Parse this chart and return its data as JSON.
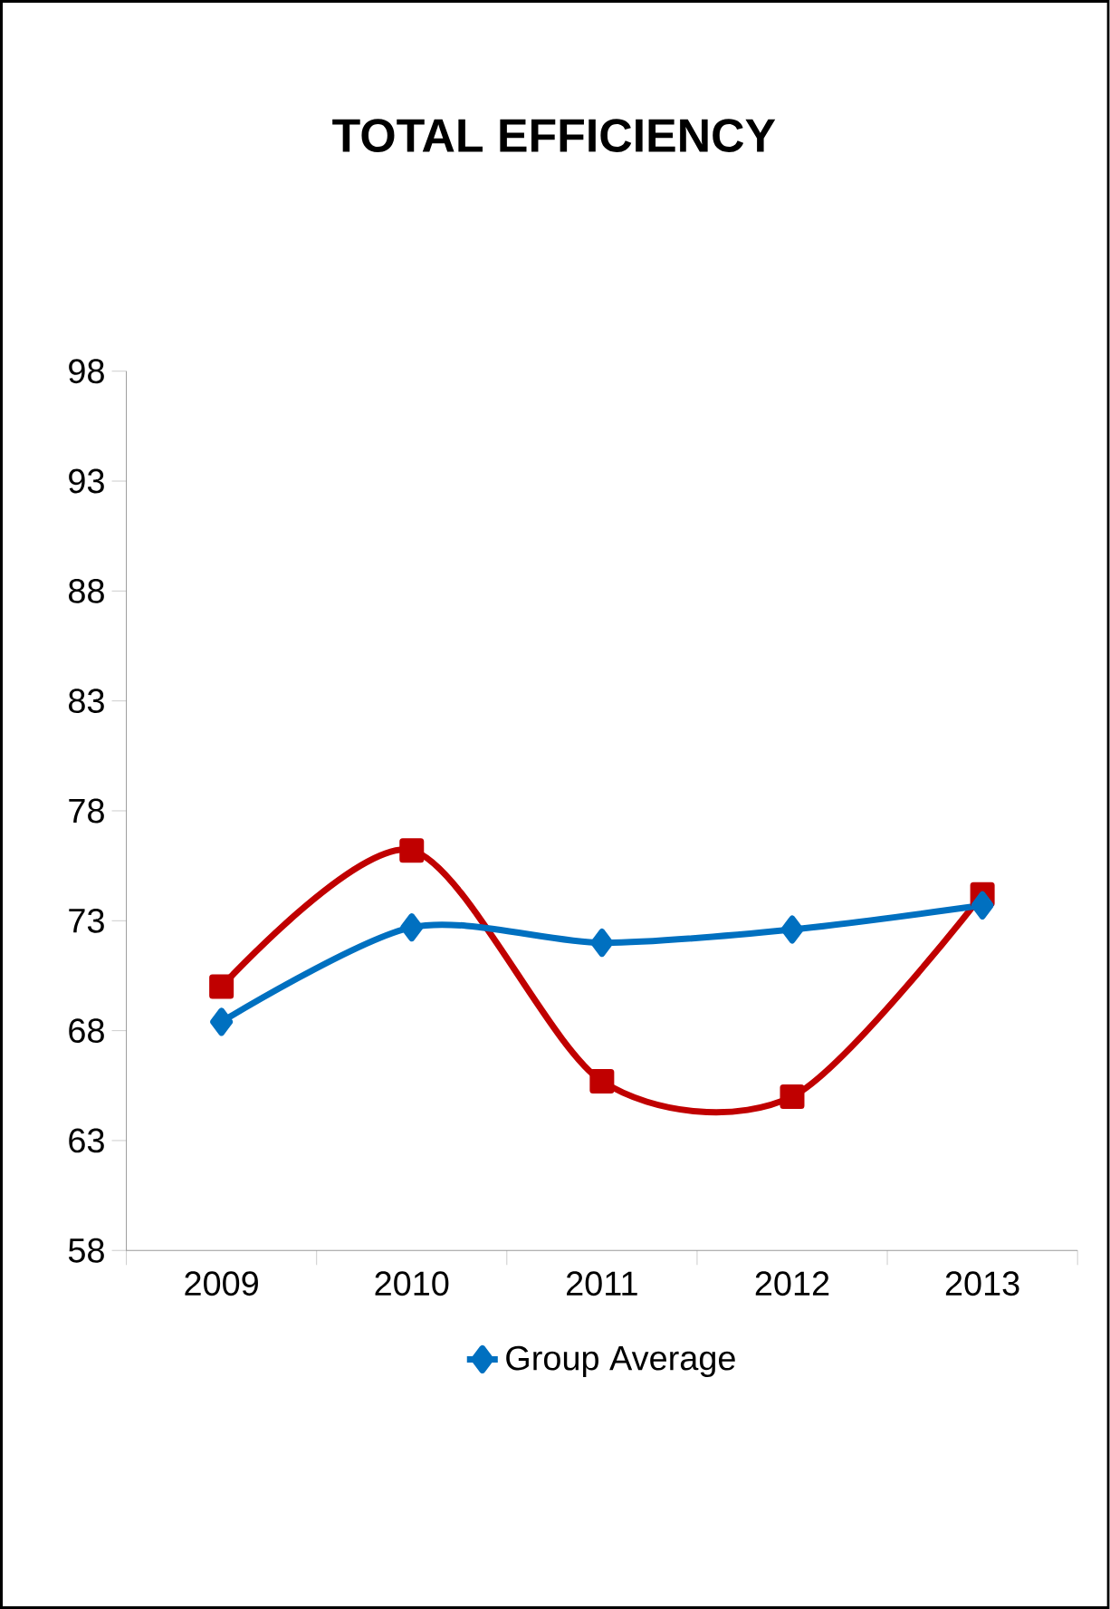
{
  "chart_data": {
    "type": "line",
    "title": "TOTAL EFFICIENCY",
    "categories": [
      "2009",
      "2010",
      "2011",
      "2012",
      "2013"
    ],
    "series": [
      {
        "color": "#c00000",
        "marker": "square",
        "values": [
          70.0,
          76.2,
          65.7,
          65.0,
          74.2
        ]
      },
      {
        "name": "Group Average",
        "color": "#0070c0",
        "marker": "diamond",
        "values": [
          68.4,
          72.7,
          72.0,
          72.6,
          73.7
        ]
      }
    ],
    "ylim": [
      58,
      98
    ],
    "yticks": [
      58,
      63,
      68,
      73,
      78,
      83,
      88,
      93,
      98
    ],
    "legend": "bottom"
  }
}
